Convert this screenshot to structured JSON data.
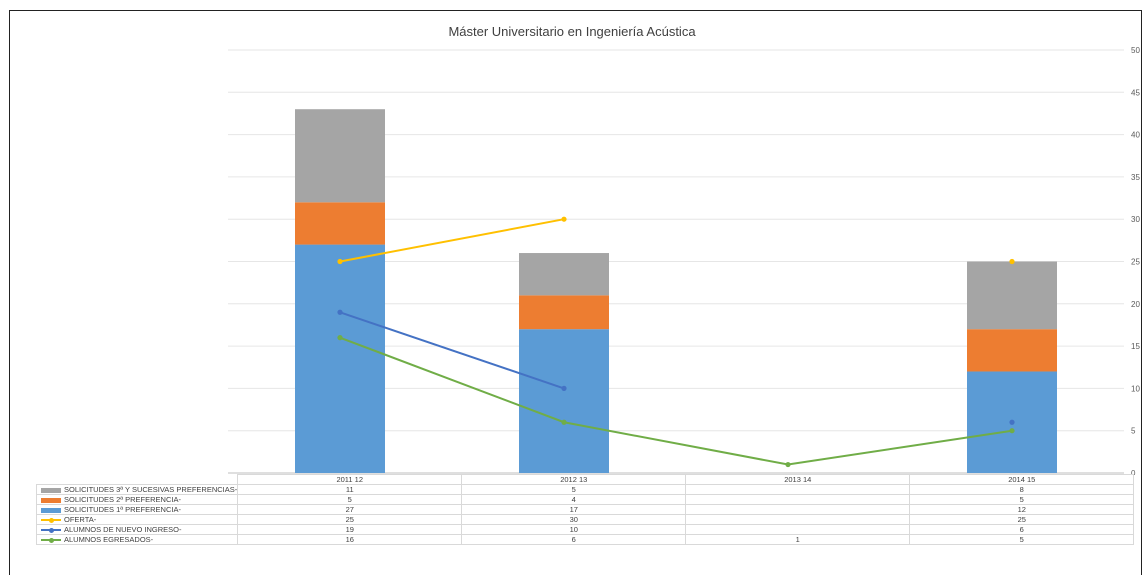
{
  "chart_data": {
    "type": "bar",
    "title": "Máster Universitario en Ingeniería Acústica",
    "categories": [
      "2011 12",
      "2012 13",
      "2013 14",
      "2014 15"
    ],
    "ylim": [
      0,
      50
    ],
    "yticks": [
      0,
      5,
      10,
      15,
      20,
      25,
      30,
      35,
      40,
      45,
      50
    ],
    "y_axis_side": "right",
    "grid": true,
    "legend_placement": "data-table-below",
    "stacked_bars": [
      {
        "name": "SOLICITUDES 1ª PREFERENCIA-",
        "color": "#5b9bd5",
        "values": [
          27,
          17,
          null,
          12
        ]
      },
      {
        "name": "SOLICITUDES 2ª PREFERENCIA-",
        "color": "#ed7d31",
        "values": [
          5,
          4,
          null,
          5
        ]
      },
      {
        "name": "SOLICITUDES 3ª Y SUCESIVAS PREFERENCIAS-",
        "color": "#a5a5a5",
        "values": [
          11,
          5,
          null,
          8
        ]
      }
    ],
    "lines": [
      {
        "name": "OFERTA-",
        "color": "#ffc000",
        "values": [
          25,
          30,
          null,
          25
        ]
      },
      {
        "name": "ALUMNOS DE NUEVO INGRESO-",
        "color": "#4472c4",
        "values": [
          19,
          10,
          null,
          6
        ]
      },
      {
        "name": "ALUMNOS EGRESADOS-",
        "color": "#70ad47",
        "values": [
          16,
          6,
          1,
          5
        ]
      }
    ],
    "table_rows": [
      {
        "name": "SOLICITUDES 3ª Y SUCESIVAS PREFERENCIAS-",
        "kind": "bar",
        "color": "#a5a5a5",
        "cells": [
          "11",
          "5",
          "",
          "8"
        ]
      },
      {
        "name": "SOLICITUDES 2ª PREFERENCIA-",
        "kind": "bar",
        "color": "#ed7d31",
        "cells": [
          "5",
          "4",
          "",
          "5"
        ]
      },
      {
        "name": "SOLICITUDES 1ª PREFERENCIA-",
        "kind": "bar",
        "color": "#5b9bd5",
        "cells": [
          "27",
          "17",
          "",
          "12"
        ]
      },
      {
        "name": "OFERTA-",
        "kind": "line",
        "color": "#ffc000",
        "cells": [
          "25",
          "30",
          "",
          "25"
        ]
      },
      {
        "name": "ALUMNOS DE NUEVO INGRESO-",
        "kind": "line",
        "color": "#4472c4",
        "cells": [
          "19",
          "10",
          "",
          "6"
        ]
      },
      {
        "name": "ALUMNOS EGRESADOS-",
        "kind": "line",
        "color": "#70ad47",
        "cells": [
          "16",
          "6",
          "1",
          "5"
        ]
      }
    ]
  }
}
